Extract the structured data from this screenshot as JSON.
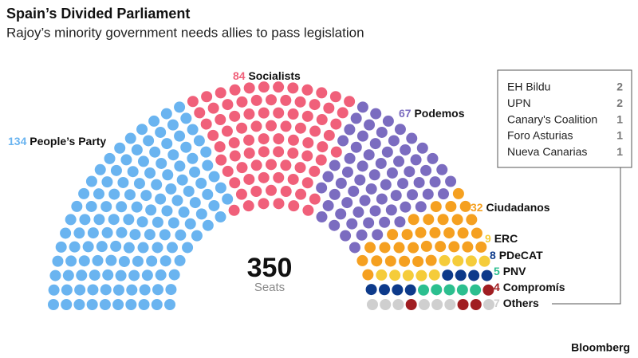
{
  "chart_data": {
    "type": "parliament",
    "title": "Spain’s Divided Parliament",
    "subtitle": "Rajoy’s minority government needs allies to pass legislation",
    "categories": [
      "People’s Party",
      "Socialists",
      "Podemos",
      "Ciudadanos",
      "ERC",
      "PDeCAT",
      "PNV",
      "Compromís",
      "Others"
    ],
    "values": [
      134,
      84,
      67,
      32,
      9,
      8,
      5,
      4,
      7
    ],
    "colors": [
      "#6ab4f0",
      "#f0607a",
      "#7b6cc0",
      "#f5a020",
      "#f5cc3a",
      "#0d3a8a",
      "#2cbf8f",
      "#a01e22",
      "#cfcfcf"
    ],
    "total": 350,
    "total_label": "Seats",
    "others_breakdown": {
      "categories": [
        "EH Bildu",
        "UPN",
        "Canary's Coalition",
        "Foro Asturias",
        "Nueva Canarias"
      ],
      "values": [
        2,
        2,
        1,
        1,
        1
      ]
    },
    "source": "Bloomberg"
  }
}
